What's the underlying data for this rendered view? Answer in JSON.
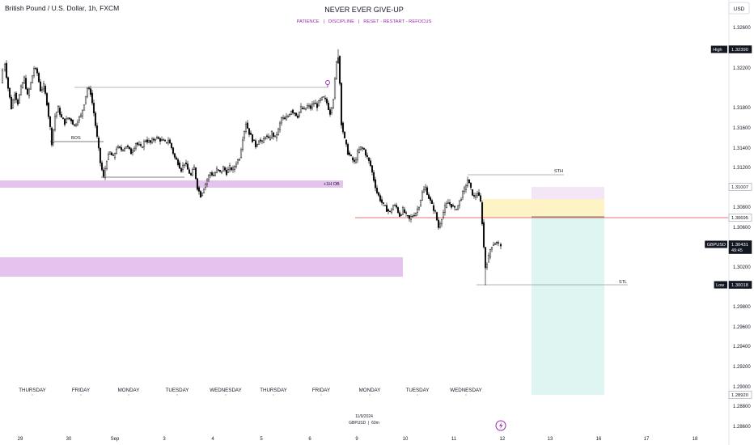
{
  "header": {
    "symbol_title": "British Pound / U.S. Dollar, 1h, FXCM",
    "headline": "NEVER EVER GIVE-UP",
    "tagline": "PATIENCE   |   DISCIPLINE   |   RESET - RESTART - REFOCUS",
    "currency": "USD"
  },
  "footer_note": {
    "date": "11/9/2024",
    "symbol": "GBPUSD  |  60m"
  },
  "colors": {
    "up": "#26a69a",
    "down": "#000000",
    "candle": "#1e1e1e",
    "zone_purple": "#e4c4ee",
    "zone_yellow": "#fdf3c4",
    "zone_teal": "#dff5f2",
    "zone_lilac": "#f3e6f7",
    "red_line": "#e57373",
    "accent_purple": "#9c27b0"
  },
  "chart_data": {
    "type": "candlestick",
    "symbol": "GBPUSD",
    "timeframe": "1h",
    "ylim": [
      1.285,
      1.3275
    ],
    "y_ticks": [
      1.326,
      1.322,
      1.318,
      1.316,
      1.314,
      1.312,
      1.308,
      1.306,
      1.302,
      1.298,
      1.296,
      1.294,
      1.292,
      1.29,
      1.288,
      1.286
    ],
    "y_tick_labels": [
      "1.32600",
      "1.32200",
      "1.31800",
      "1.31600",
      "1.31400",
      "1.31200",
      "1.30800",
      "1.30600",
      "1.30200",
      "1.29800",
      "1.29600",
      "1.29400",
      "1.29200",
      "1.29000",
      "1.28800",
      "1.28600"
    ],
    "x_date_labels": [
      "29",
      "30",
      "Sep",
      "3",
      "4",
      "5",
      "6",
      "9",
      "10",
      "11",
      "12",
      "13",
      "16",
      "17",
      "18"
    ],
    "weekday_labels": [
      "THURSDAY",
      "FRIDAY",
      "MONDAY",
      "TUESDAY",
      "WEDNESDAY",
      "THURSDAY",
      "FRIDAY",
      "MONDAY",
      "TUESDAY",
      "WEDNESDAY"
    ],
    "price_tags": [
      {
        "label": "High",
        "value": "1.32390"
      },
      {
        "label": "",
        "value": "1.31007"
      },
      {
        "label": "",
        "value": "1.30695"
      },
      {
        "label": "GBPUSD",
        "value": "1.30431",
        "sub": "49:45"
      },
      {
        "label": "Low",
        "value": "1.30018"
      },
      {
        "label": "",
        "value": "1.28920"
      }
    ],
    "annotations": [
      {
        "text": "BOS"
      },
      {
        "text": "+1H OB"
      },
      {
        "text": "STH"
      },
      {
        "text": "STL"
      }
    ],
    "levels": {
      "high": 1.3239,
      "low": 1.30018,
      "entry": 1.30695,
      "stop": 1.31007,
      "target": 1.2892,
      "last": 1.30431,
      "bos": 1.3145,
      "sth": 1.3118,
      "prior_high": 1.32,
      "ob_top": 1.3109,
      "ob_bottom": 1.3102,
      "lower_zone_top": 1.3028,
      "lower_zone_bottom": 1.3008
    },
    "path_points": [
      [
        0,
        1.3205
      ],
      [
        3,
        1.3218
      ],
      [
        6,
        1.3225
      ],
      [
        10,
        1.32
      ],
      [
        14,
        1.318
      ],
      [
        18,
        1.3195
      ],
      [
        22,
        1.3185
      ],
      [
        26,
        1.32
      ],
      [
        30,
        1.321
      ],
      [
        34,
        1.3192
      ],
      [
        38,
        1.3205
      ],
      [
        42,
        1.322
      ],
      [
        46,
        1.3215
      ],
      [
        50,
        1.3198
      ],
      [
        54,
        1.3202
      ],
      [
        58,
        1.3185
      ],
      [
        62,
        1.316
      ],
      [
        64,
        1.3145
      ],
      [
        68,
        1.3172
      ],
      [
        72,
        1.318
      ],
      [
        76,
        1.317
      ],
      [
        80,
        1.3165
      ],
      [
        84,
        1.317
      ],
      [
        88,
        1.3168
      ],
      [
        92,
        1.3162
      ],
      [
        96,
        1.3168
      ],
      [
        100,
        1.3172
      ],
      [
        104,
        1.3185
      ],
      [
        108,
        1.32
      ],
      [
        112,
        1.3195
      ],
      [
        116,
        1.3175
      ],
      [
        120,
        1.315
      ],
      [
        124,
        1.3125
      ],
      [
        128,
        1.311
      ],
      [
        132,
        1.3128
      ],
      [
        136,
        1.3135
      ],
      [
        140,
        1.313
      ],
      [
        144,
        1.314
      ],
      [
        150,
        1.3138
      ],
      [
        156,
        1.3142
      ],
      [
        162,
        1.3135
      ],
      [
        168,
        1.3145
      ],
      [
        174,
        1.314
      ],
      [
        180,
        1.3148
      ],
      [
        186,
        1.3145
      ],
      [
        192,
        1.315
      ],
      [
        198,
        1.3148
      ],
      [
        204,
        1.3145
      ],
      [
        208,
        1.3148
      ],
      [
        212,
        1.314
      ],
      [
        216,
        1.313
      ],
      [
        220,
        1.3125
      ],
      [
        224,
        1.3118
      ],
      [
        228,
        1.3125
      ],
      [
        232,
        1.3118
      ],
      [
        236,
        1.3112
      ],
      [
        240,
        1.312
      ],
      [
        244,
        1.31
      ],
      [
        248,
        1.3092
      ],
      [
        252,
        1.31
      ],
      [
        256,
        1.3108
      ],
      [
        260,
        1.3115
      ],
      [
        264,
        1.3112
      ],
      [
        268,
        1.3118
      ],
      [
        272,
        1.3115
      ],
      [
        276,
        1.312
      ],
      [
        280,
        1.3115
      ],
      [
        284,
        1.312
      ],
      [
        288,
        1.3118
      ],
      [
        292,
        1.3125
      ],
      [
        296,
        1.313
      ],
      [
        300,
        1.315
      ],
      [
        304,
        1.3165
      ],
      [
        308,
        1.3155
      ],
      [
        312,
        1.3148
      ],
      [
        316,
        1.3142
      ],
      [
        320,
        1.3148
      ],
      [
        324,
        1.3145
      ],
      [
        328,
        1.3152
      ],
      [
        332,
        1.3148
      ],
      [
        336,
        1.3155
      ],
      [
        340,
        1.315
      ],
      [
        344,
        1.3158
      ],
      [
        348,
        1.317
      ],
      [
        352,
        1.3168
      ],
      [
        356,
        1.3172
      ],
      [
        360,
        1.3178
      ],
      [
        364,
        1.3175
      ],
      [
        368,
        1.3172
      ],
      [
        372,
        1.318
      ],
      [
        376,
        1.3178
      ],
      [
        380,
        1.3182
      ],
      [
        384,
        1.318
      ],
      [
        388,
        1.3185
      ],
      [
        392,
        1.3182
      ],
      [
        396,
        1.3188
      ],
      [
        400,
        1.319
      ],
      [
        404,
        1.3185
      ],
      [
        408,
        1.3175
      ],
      [
        412,
        1.319
      ],
      [
        416,
        1.3225
      ],
      [
        418,
        1.3232
      ],
      [
        420,
        1.3205
      ],
      [
        422,
        1.3165
      ],
      [
        426,
        1.3148
      ],
      [
        430,
        1.3135
      ],
      [
        434,
        1.313
      ],
      [
        438,
        1.3125
      ],
      [
        442,
        1.3135
      ],
      [
        446,
        1.314
      ],
      [
        450,
        1.3138
      ],
      [
        454,
        1.313
      ],
      [
        458,
        1.3122
      ],
      [
        462,
        1.3108
      ],
      [
        466,
        1.3095
      ],
      [
        470,
        1.3088
      ],
      [
        474,
        1.3082
      ],
      [
        478,
        1.3078
      ],
      [
        482,
        1.3075
      ],
      [
        486,
        1.3082
      ],
      [
        490,
        1.308
      ],
      [
        494,
        1.3072
      ],
      [
        498,
        1.3078
      ],
      [
        502,
        1.3072
      ],
      [
        506,
        1.3068
      ],
      [
        510,
        1.3072
      ],
      [
        514,
        1.3075
      ],
      [
        518,
        1.3082
      ],
      [
        522,
        1.3095
      ],
      [
        526,
        1.31
      ],
      [
        530,
        1.309
      ],
      [
        534,
        1.3082
      ],
      [
        538,
        1.3075
      ],
      [
        542,
        1.306
      ],
      [
        546,
        1.307
      ],
      [
        550,
        1.308
      ],
      [
        554,
        1.3085
      ],
      [
        558,
        1.3082
      ],
      [
        562,
        1.3078
      ],
      [
        566,
        1.3082
      ],
      [
        570,
        1.309
      ],
      [
        574,
        1.3098
      ],
      [
        578,
        1.3108
      ],
      [
        582,
        1.3098
      ],
      [
        586,
        1.309
      ],
      [
        590,
        1.3095
      ],
      [
        594,
        1.3085
      ],
      [
        596,
        1.3065
      ],
      [
        598,
        1.304
      ],
      [
        600,
        1.302
      ],
      [
        602,
        1.3025
      ],
      [
        604,
        1.303
      ],
      [
        606,
        1.3038
      ],
      [
        608,
        1.3042
      ],
      [
        612,
        1.3045
      ],
      [
        616,
        1.3043
      ],
      [
        619,
        1.3043
      ]
    ]
  }
}
